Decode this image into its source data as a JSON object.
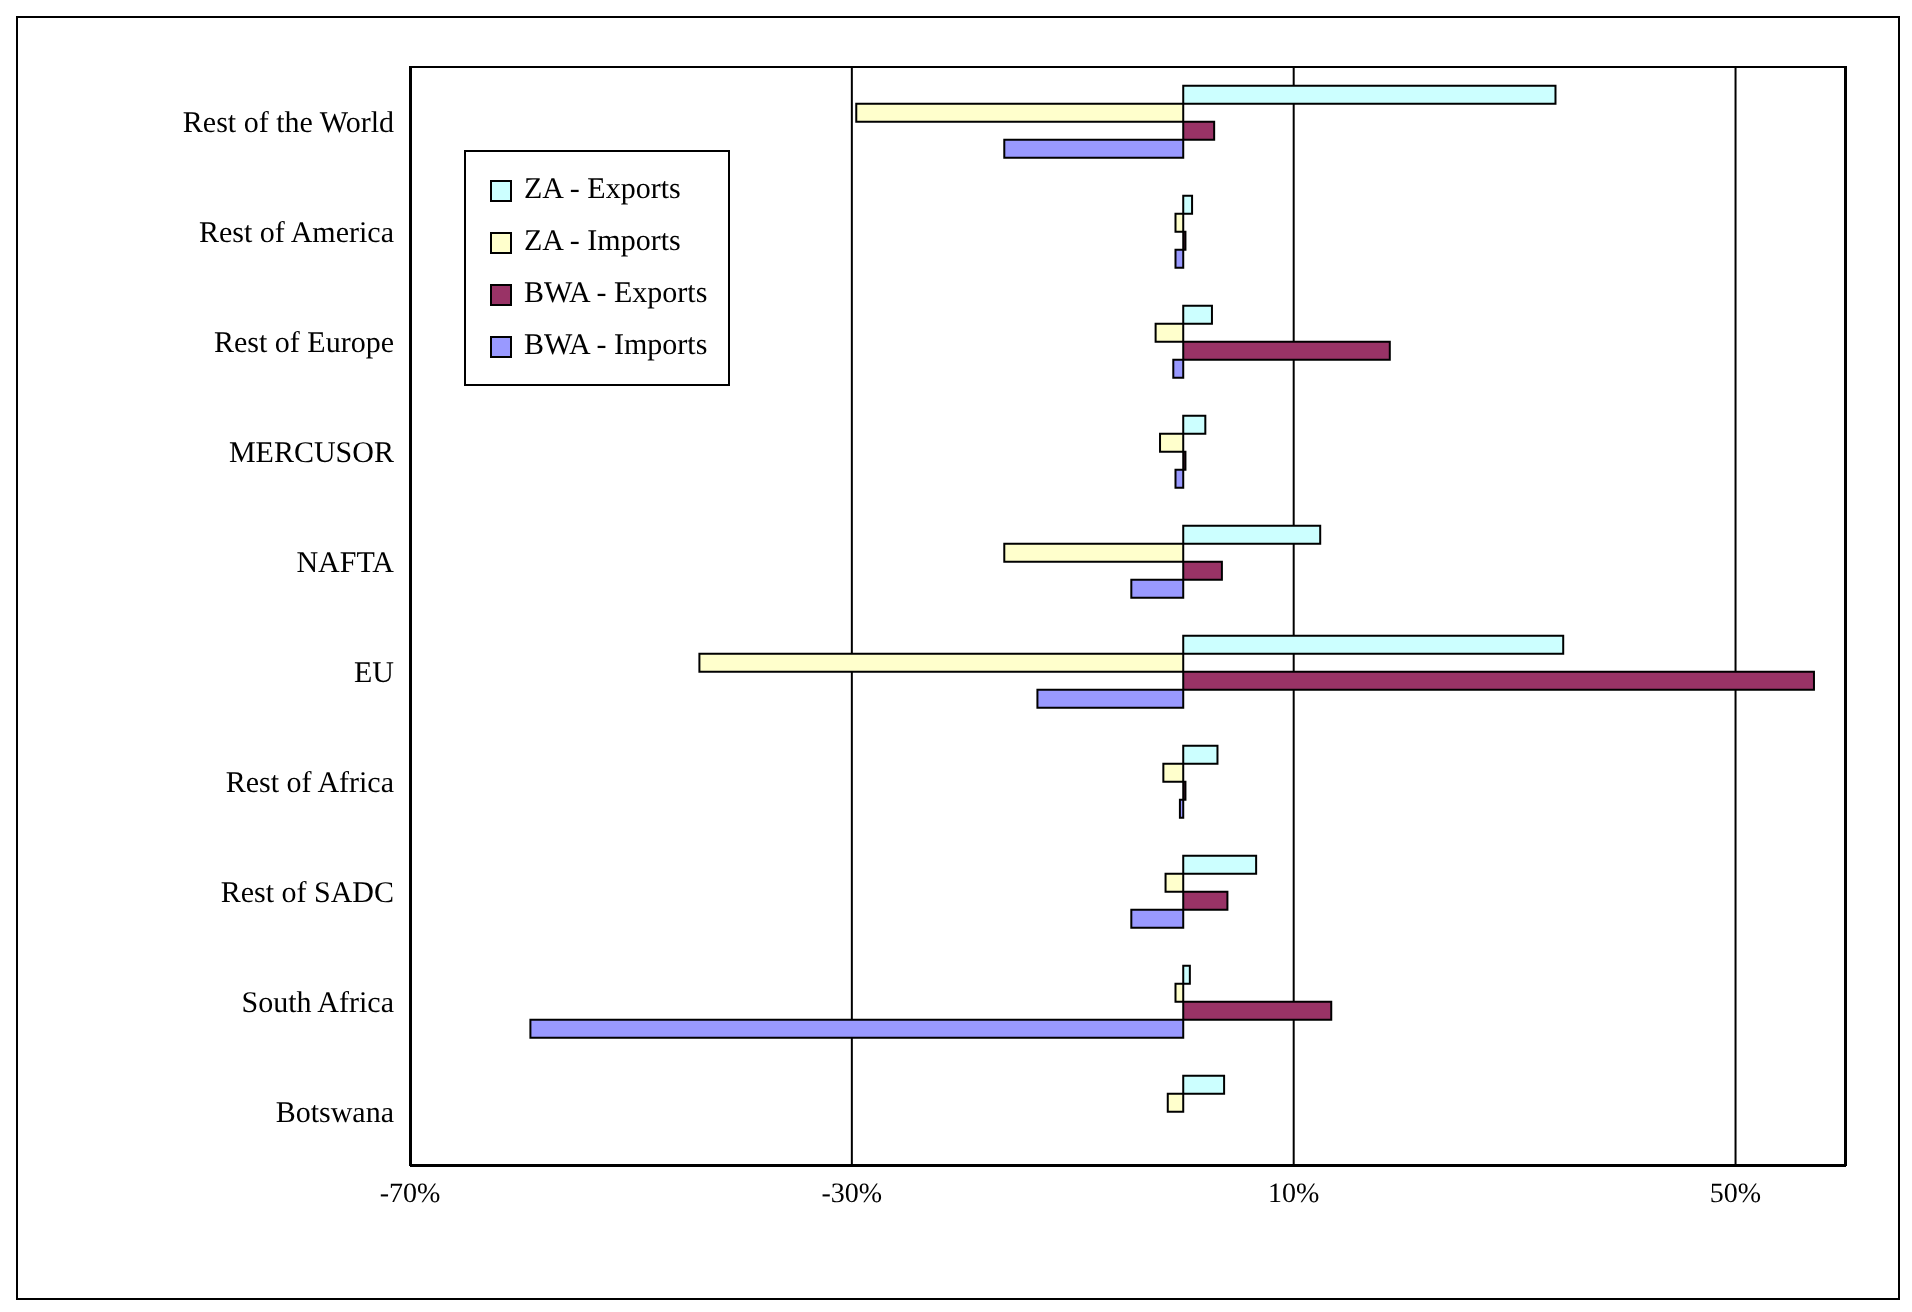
{
  "chart_data": {
    "type": "bar",
    "orientation": "horizontal",
    "categories": [
      "Rest of the World",
      "Rest of America",
      "Rest of Europe",
      "MERCUSOR",
      "NAFTA",
      "EU",
      "Rest of Africa",
      "Rest of SADC",
      "South Africa",
      "Botswana"
    ],
    "series": [
      {
        "name": "ZA - Exports",
        "color": "#ccffff",
        "values": [
          33.7,
          0.8,
          2.6,
          2.0,
          12.4,
          34.4,
          3.1,
          6.6,
          0.6,
          3.7
        ]
      },
      {
        "name": "ZA - Imports",
        "color": "#ffffcc",
        "values": [
          -29.6,
          -0.7,
          -2.5,
          -2.1,
          -16.2,
          -43.8,
          -1.8,
          -1.6,
          -0.7,
          -1.4
        ]
      },
      {
        "name": "BWA - Exports",
        "color": "#993366",
        "values": [
          2.8,
          0.2,
          18.7,
          0.2,
          3.5,
          57.1,
          0.2,
          4.0,
          13.4,
          0
        ]
      },
      {
        "name": "BWA - Imports",
        "color": "#9999ff",
        "values": [
          -16.2,
          -0.7,
          -0.9,
          -0.7,
          -4.7,
          -13.2,
          -0.3,
          -4.7,
          -59.1,
          0
        ]
      }
    ],
    "xlim": [
      -70,
      60
    ],
    "xticks": [
      {
        "value": -70,
        "label": "-70%"
      },
      {
        "value": -30,
        "label": "-30%"
      },
      {
        "value": 10,
        "label": "10%"
      },
      {
        "value": 50,
        "label": "50%"
      }
    ],
    "grid": "x",
    "legend": "top left"
  }
}
